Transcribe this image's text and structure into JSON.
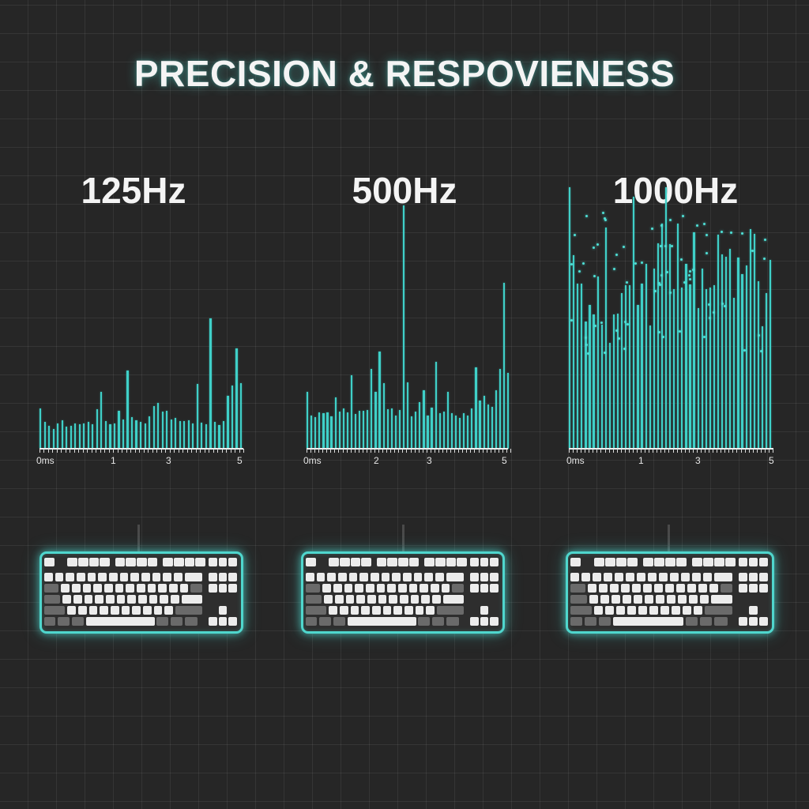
{
  "title": "PRECISION & RESPOVIENESS",
  "colors": {
    "background": "#262626",
    "bar": "#3fd0c8",
    "glow": "#4fd6cd",
    "text": "#f4f4f4",
    "key_light": "#ececec",
    "key_dark": "#6a6a6a"
  },
  "panels": [
    {
      "label": "125Hz",
      "axis_labels": [
        "0ms",
        "1",
        "3",
        "5"
      ],
      "keyboard_label": "keyboard-125hz"
    },
    {
      "label": "500Hz",
      "axis_labels": [
        "0ms",
        "2",
        "3",
        "5"
      ],
      "keyboard_label": "keyboard-500hz"
    },
    {
      "label": "1000Hz",
      "axis_labels": [
        "0ms",
        "1",
        "3",
        "5"
      ],
      "keyboard_label": "keyboard-1000hz"
    }
  ],
  "chart_data": [
    {
      "type": "bar",
      "title": "125Hz",
      "xlabel": "ms",
      "x_ticks": [
        "0ms",
        "1",
        "3",
        "5"
      ],
      "ylim": [
        0,
        320
      ],
      "values": [
        48,
        32,
        27,
        24,
        30,
        34,
        26,
        27,
        30,
        29,
        30,
        32,
        29,
        47,
        68,
        33,
        29,
        30,
        45,
        35,
        93,
        38,
        34,
        32,
        30,
        39,
        51,
        55,
        44,
        45,
        35,
        37,
        33,
        33,
        34,
        30,
        77,
        31,
        29,
        155,
        32,
        28,
        33,
        63,
        75,
        120,
        78
      ]
    },
    {
      "type": "bar",
      "title": "500Hz",
      "xlabel": "ms",
      "x_ticks": [
        "0ms",
        "2",
        "3",
        "5"
      ],
      "ylim": [
        0,
        320
      ],
      "values": [
        68,
        40,
        38,
        43,
        42,
        43,
        39,
        61,
        44,
        48,
        43,
        88,
        41,
        45,
        45,
        46,
        95,
        68,
        116,
        78,
        47,
        48,
        40,
        46,
        290,
        79,
        39,
        44,
        56,
        70,
        40,
        49,
        104,
        42,
        44,
        68,
        42,
        40,
        37,
        42,
        40,
        48,
        97,
        57,
        63,
        53,
        50,
        70,
        95,
        198,
        90
      ]
    },
    {
      "type": "bar",
      "title": "1000Hz",
      "xlabel": "ms",
      "x_ticks": [
        "0ms",
        "1",
        "3",
        "5"
      ],
      "ylim": [
        0,
        320
      ],
      "values": [
        312,
        231,
        197,
        197,
        152,
        171,
        160,
        205,
        148,
        264,
        126,
        160,
        161,
        185,
        195,
        195,
        300,
        171,
        197,
        220,
        147,
        215,
        245,
        268,
        312,
        244,
        190,
        268,
        192,
        220,
        196,
        258,
        168,
        215,
        190,
        192,
        195,
        255,
        232,
        229,
        238,
        180,
        228,
        208,
        218,
        262,
        256,
        200,
        146,
        185,
        225
      ]
    }
  ]
}
